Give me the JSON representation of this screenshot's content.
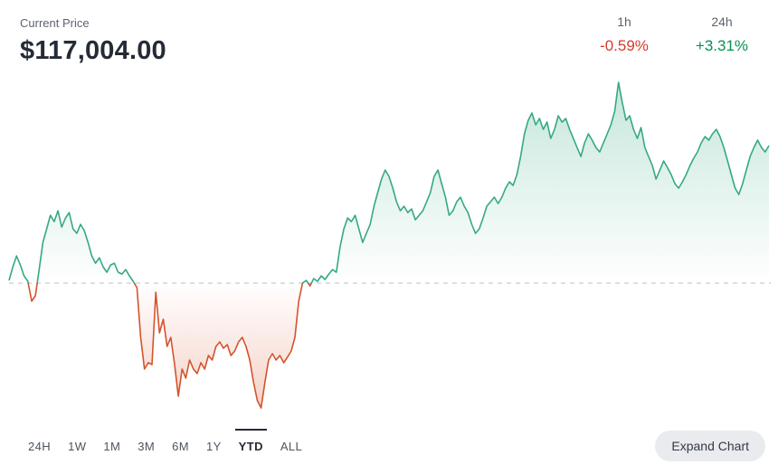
{
  "header": {
    "price_label": "Current Price",
    "price_value": "$117,004.00",
    "stats": [
      {
        "label": "1h",
        "value": "-0.59%",
        "trend": "down"
      },
      {
        "label": "24h",
        "value": "+3.31%",
        "trend": "up"
      }
    ]
  },
  "tabs": {
    "items": [
      {
        "label": "24H",
        "selected": false
      },
      {
        "label": "1W",
        "selected": false
      },
      {
        "label": "1M",
        "selected": false
      },
      {
        "label": "3M",
        "selected": false
      },
      {
        "label": "6M",
        "selected": false
      },
      {
        "label": "1Y",
        "selected": false
      },
      {
        "label": "YTD",
        "selected": true
      },
      {
        "label": "ALL",
        "selected": false
      }
    ]
  },
  "expand_chart": {
    "label": "Expand Chart"
  },
  "colors": {
    "price_text": "#252b36",
    "muted_text": "#5d6370",
    "down_text": "#d93a2b",
    "up_text": "#0a8f54",
    "line_up": "#35a97f",
    "line_down": "#d5532c",
    "baseline": "#c7ccd4",
    "tab_text": "#4d5460",
    "tab_selected": "#252b36",
    "button_bg": "#e9ebee",
    "button_text": "#333a45"
  },
  "chart_data": {
    "type": "area",
    "title": "",
    "current_price": 117004.0,
    "change_1h_pct": -0.59,
    "change_24h_pct": 3.31,
    "selected_range": "YTD",
    "baseline": 0,
    "grid": false,
    "legend": false,
    "values": [
      3,
      18,
      30,
      20,
      8,
      2,
      -20,
      -14,
      15,
      45,
      60,
      75,
      68,
      80,
      62,
      72,
      78,
      60,
      55,
      65,
      58,
      45,
      30,
      22,
      28,
      18,
      12,
      20,
      22,
      12,
      10,
      15,
      8,
      2,
      -5,
      -60,
      -95,
      -88,
      -90,
      -10,
      -55,
      -40,
      -70,
      -60,
      -90,
      -125,
      -95,
      -105,
      -85,
      -95,
      -100,
      -88,
      -95,
      -80,
      -85,
      -70,
      -65,
      -72,
      -68,
      -80,
      -75,
      -65,
      -60,
      -70,
      -85,
      -110,
      -130,
      -138,
      -110,
      -85,
      -78,
      -85,
      -80,
      -88,
      -82,
      -75,
      -60,
      -20,
      0,
      3,
      -3,
      5,
      2,
      8,
      4,
      10,
      15,
      12,
      40,
      60,
      72,
      68,
      75,
      60,
      45,
      55,
      65,
      85,
      100,
      115,
      125,
      118,
      105,
      90,
      80,
      85,
      78,
      82,
      70,
      75,
      80,
      90,
      100,
      118,
      125,
      110,
      95,
      75,
      80,
      90,
      95,
      85,
      78,
      65,
      55,
      60,
      72,
      85,
      90,
      95,
      88,
      95,
      105,
      112,
      108,
      120,
      140,
      165,
      180,
      188,
      175,
      182,
      170,
      178,
      160,
      170,
      185,
      178,
      182,
      170,
      160,
      150,
      140,
      155,
      165,
      158,
      150,
      145,
      155,
      165,
      175,
      190,
      222,
      200,
      180,
      185,
      170,
      160,
      172,
      150,
      140,
      130,
      115,
      125,
      135,
      128,
      120,
      110,
      105,
      112,
      120,
      130,
      138,
      145,
      155,
      162,
      158,
      165,
      170,
      162,
      150,
      135,
      120,
      105,
      98,
      110,
      125,
      140,
      150,
      158,
      150,
      145,
      152
    ]
  }
}
